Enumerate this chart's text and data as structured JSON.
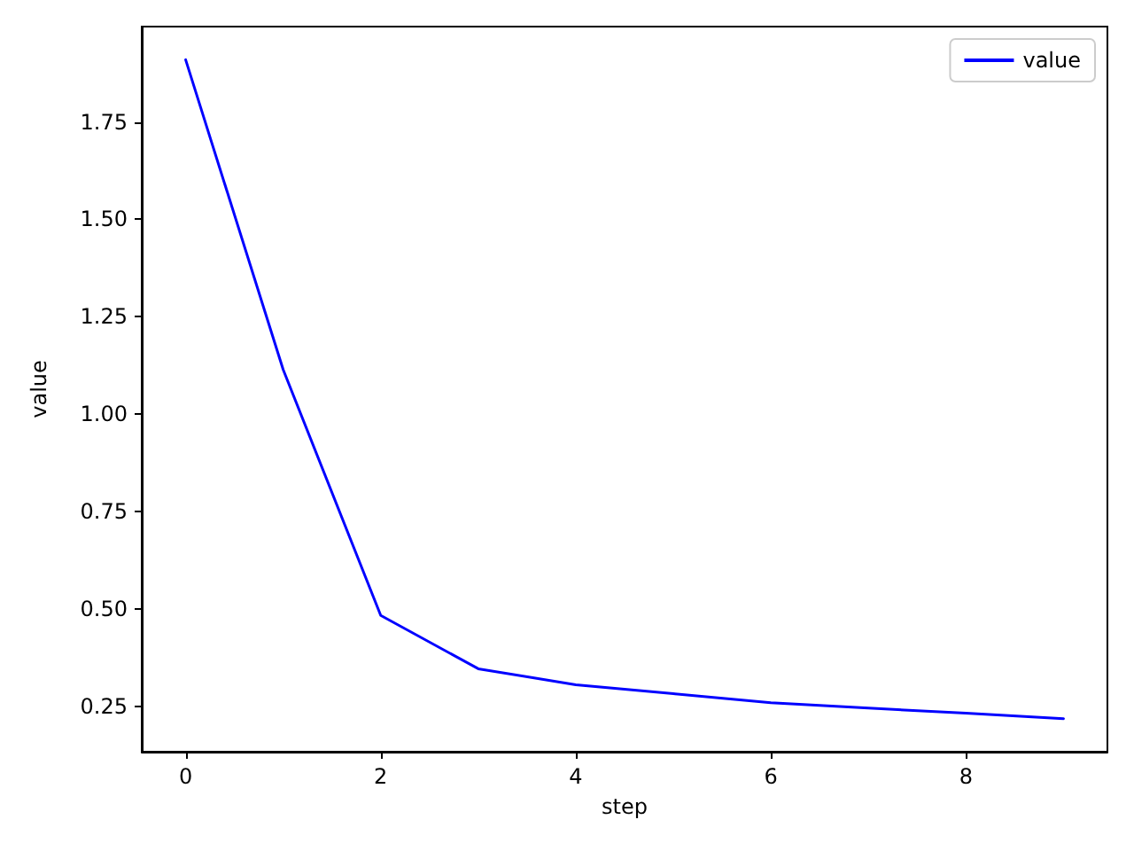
{
  "chart_data": {
    "type": "line",
    "xlabel": "step",
    "ylabel": "value",
    "x": [
      0,
      1,
      2,
      3,
      4,
      5,
      6,
      7,
      8,
      9
    ],
    "series": [
      {
        "name": "value",
        "color": "#0000ff",
        "values": [
          1.91,
          1.114,
          0.483,
          0.346,
          0.305,
          0.282,
          0.259,
          0.245,
          0.232,
          0.218
        ]
      }
    ],
    "xlim": [
      -0.45,
      9.45
    ],
    "ylim": [
      0.133,
      1.995
    ],
    "xticks": [
      0,
      2,
      4,
      6,
      8
    ],
    "yticks": [
      {
        "value": 0.25,
        "label": "0.25"
      },
      {
        "value": 0.5,
        "label": "0.50"
      },
      {
        "value": 0.75,
        "label": "0.75"
      },
      {
        "value": 1,
        "label": "1.00"
      },
      {
        "value": 1.25,
        "label": "1.25"
      },
      {
        "value": 1.5,
        "label": "1.50"
      },
      {
        "value": 1.75,
        "label": "1.75"
      }
    ],
    "grid": false,
    "legend": "top right",
    "marker": "none",
    "line_style": "solid"
  }
}
